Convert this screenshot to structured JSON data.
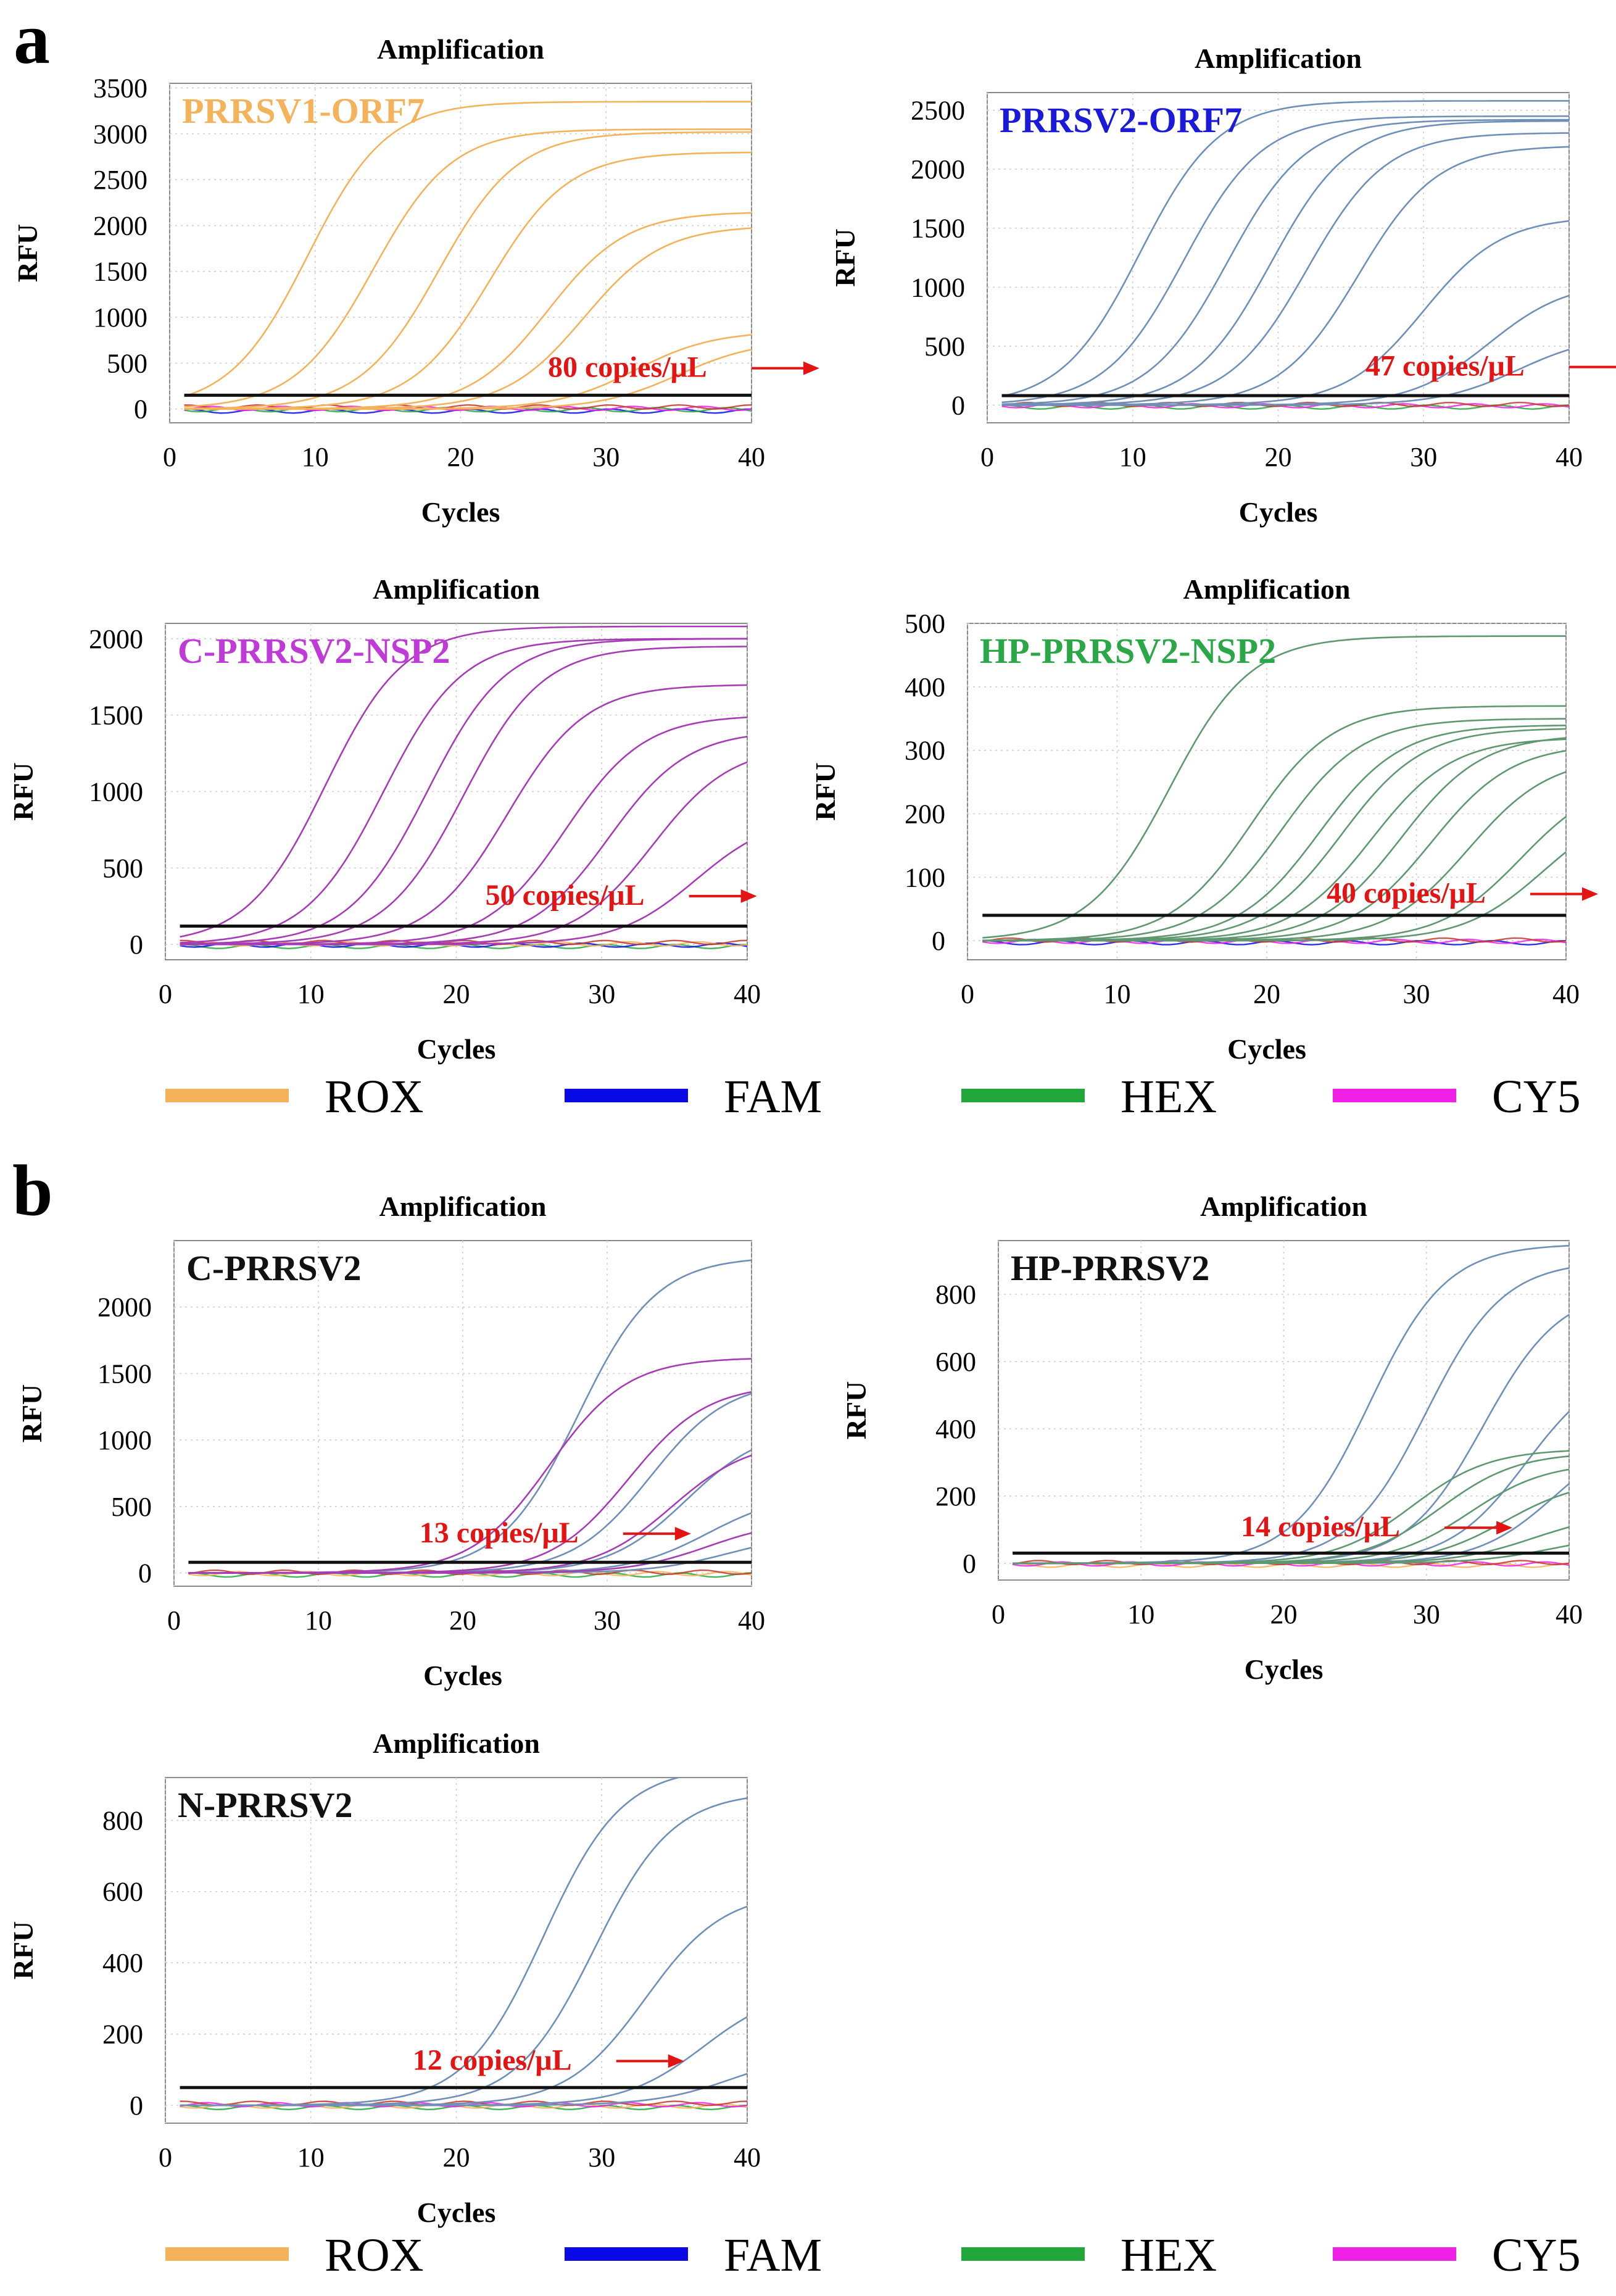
{
  "figure_labels": {
    "a": "a",
    "b": "b"
  },
  "threshold_color": "#111111",
  "legend": {
    "items": [
      {
        "name": "ROX",
        "color": "#F4B25B"
      },
      {
        "name": "FAM",
        "color": "#0A0AE6"
      },
      {
        "name": "HEX",
        "color": "#22A83A"
      },
      {
        "name": "CY5",
        "color": "#F020E6"
      }
    ]
  },
  "chart_data": [
    {
      "id": "a1",
      "type": "line",
      "title": "Amplification",
      "xlabel": "Cycles",
      "ylabel": "RFU",
      "xlim": [
        0,
        40
      ],
      "ylim": [
        -150,
        3550
      ],
      "xticks": [
        0,
        10,
        20,
        30,
        40
      ],
      "yticks": [
        0,
        500,
        1000,
        1500,
        2000,
        2500,
        3000,
        3500
      ],
      "label": "PRRSV1-ORF7",
      "label_color": "#F4B25B",
      "threshold": 150,
      "annotation": "80 copies/μL",
      "annotation_at": [
        26,
        350
      ],
      "curves": {
        "color": "#F4B25B",
        "params": [
          [
            9.5,
            3350
          ],
          [
            14,
            3050
          ],
          [
            18.5,
            3020
          ],
          [
            22,
            2800
          ],
          [
            26,
            2150
          ],
          [
            28.5,
            2000
          ],
          [
            32,
            850
          ],
          [
            35,
            750
          ]
        ]
      },
      "flat_colors": [
        "#0A0AE6",
        "#22A83A",
        "#F020E6",
        "#C0392B"
      ]
    },
    {
      "id": "a2",
      "type": "line",
      "title": "Amplification",
      "xlabel": "Cycles",
      "ylabel": "RFU",
      "xlim": [
        0,
        40
      ],
      "ylim": [
        -150,
        2650
      ],
      "xticks": [
        0,
        10,
        20,
        30,
        40
      ],
      "yticks": [
        0,
        500,
        1000,
        1500,
        2000,
        2500
      ],
      "label": "PRRSV2-ORF7",
      "label_color": "#1A1AD8",
      "threshold": 80,
      "annotation": "47 copies/μL",
      "annotation_at": [
        26,
        250
      ],
      "curves": {
        "color": "#6F8FB8",
        "params": [
          [
            10.5,
            2580
          ],
          [
            13.5,
            2450
          ],
          [
            16.5,
            2420
          ],
          [
            19.5,
            2410
          ],
          [
            22,
            2310
          ],
          [
            25.5,
            2200
          ],
          [
            30,
            1600
          ],
          [
            34.5,
            1050
          ],
          [
            36.5,
            600
          ]
        ]
      },
      "flat_colors": [
        "#22A83A",
        "#F020E6",
        "#C0392B"
      ]
    },
    {
      "id": "a3",
      "type": "line",
      "title": "Amplification",
      "xlabel": "Cycles",
      "ylabel": "RFU",
      "xlim": [
        0,
        40
      ],
      "ylim": [
        -100,
        2100
      ],
      "xticks": [
        0,
        10,
        20,
        30,
        40
      ],
      "yticks": [
        0,
        500,
        1000,
        1500,
        2000
      ],
      "label": "C-PRRSV2-NSP2",
      "label_color": "#C03AD8",
      "threshold": 120,
      "annotation": "50 copies/μL",
      "annotation_at": [
        22,
        260
      ],
      "curves": {
        "color": "#A63CB5",
        "params": [
          [
            11,
            2080
          ],
          [
            15,
            2000
          ],
          [
            18,
            2000
          ],
          [
            20.5,
            1950
          ],
          [
            23.5,
            1700
          ],
          [
            27.5,
            1500
          ],
          [
            30.5,
            1400
          ],
          [
            33.5,
            1300
          ],
          [
            36.5,
            850
          ]
        ]
      },
      "flat_colors": [
        "#22A83A",
        "#0A0AE6",
        "#F4B25B",
        "#C0392B"
      ]
    },
    {
      "id": "a4",
      "type": "line",
      "title": "Amplification",
      "xlabel": "Cycles",
      "ylabel": "RFU",
      "xlim": [
        0,
        40
      ],
      "ylim": [
        -30,
        500
      ],
      "xticks": [
        0,
        10,
        20,
        30,
        40
      ],
      "yticks": [
        0,
        100,
        200,
        300,
        400,
        500
      ],
      "label": "HP-PRRSV2-NSP2",
      "label_color": "#2AA847",
      "threshold": 40,
      "annotation": "40 copies/μL",
      "annotation_at": [
        24,
        60
      ],
      "curves": {
        "color": "#5E9870",
        "params": [
          [
            13.5,
            480
          ],
          [
            19,
            370
          ],
          [
            21,
            350
          ],
          [
            23.5,
            340
          ],
          [
            25,
            335
          ],
          [
            27,
            320
          ],
          [
            29,
            325
          ],
          [
            31,
            310
          ],
          [
            33.5,
            290
          ],
          [
            37,
            260
          ],
          [
            38.5,
            220
          ]
        ]
      },
      "flat_colors": [
        "#0A0AE6",
        "#F020E6",
        "#C0392B"
      ]
    },
    {
      "id": "b1",
      "type": "line",
      "title": "Amplification",
      "xlabel": "Cycles",
      "ylabel": "RFU",
      "xlim": [
        0,
        40
      ],
      "ylim": [
        -100,
        2500
      ],
      "xticks": [
        0,
        10,
        20,
        30,
        40
      ],
      "yticks": [
        0,
        500,
        1000,
        1500,
        2000
      ],
      "label": "C-PRRSV2",
      "label_color": "#111111",
      "threshold": 80,
      "annotation": "13 copies/μL",
      "annotation_at": [
        17,
        230
      ],
      "curves": {
        "color": "#6F8FB8",
        "params": [
          [
            28,
            2380
          ],
          [
            33,
            1450
          ],
          [
            35.5,
            1100
          ],
          [
            37,
            600
          ],
          [
            38.5,
            300
          ]
        ]
      },
      "curves2": {
        "color": "#A63CB5",
        "params": [
          [
            26,
            1620
          ],
          [
            31.5,
            1420
          ],
          [
            34.5,
            1000
          ],
          [
            37,
            400
          ]
        ]
      },
      "flat_colors": [
        "#22A83A",
        "#F4B25B",
        "#C0392B"
      ]
    },
    {
      "id": "b2",
      "type": "line",
      "title": "Amplification",
      "xlabel": "Cycles",
      "ylabel": "RFU",
      "xlim": [
        0,
        40
      ],
      "ylim": [
        -50,
        960
      ],
      "xticks": [
        0,
        10,
        20,
        30,
        40
      ],
      "yticks": [
        0,
        200,
        400,
        600,
        800
      ],
      "label": "HP-PRRSV2",
      "label_color": "#111111",
      "threshold": 30,
      "annotation": "14 copies/μL",
      "annotation_at": [
        17,
        80
      ],
      "curves": {
        "color": "#6F8FB8",
        "params": [
          [
            26,
            950
          ],
          [
            30,
            900
          ],
          [
            34,
            820
          ],
          [
            37,
            600
          ],
          [
            39,
            400
          ]
        ]
      },
      "curves2": {
        "color": "#5E9870",
        "params": [
          [
            29,
            340
          ],
          [
            31,
            330
          ],
          [
            33,
            300
          ],
          [
            35.5,
            250
          ],
          [
            37.5,
            150
          ],
          [
            39,
            90
          ]
        ]
      },
      "flat_colors": [
        "#F4B25B",
        "#F020E6",
        "#C0392B"
      ]
    },
    {
      "id": "b3",
      "type": "line",
      "title": "Amplification",
      "xlabel": "Cycles",
      "ylabel": "RFU",
      "xlim": [
        0,
        40
      ],
      "ylim": [
        -50,
        920
      ],
      "xticks": [
        0,
        10,
        20,
        30,
        40
      ],
      "yticks": [
        0,
        200,
        400,
        600,
        800
      ],
      "label": "N-PRRSV2",
      "label_color": "#111111",
      "threshold": 50,
      "annotation": "12 copies/μL",
      "annotation_at": [
        17,
        100
      ],
      "curves": {
        "color": "#6F8FB8",
        "params": [
          [
            26,
            950
          ],
          [
            29.5,
            880
          ],
          [
            33,
            600
          ],
          [
            37,
            330
          ],
          [
            39,
            150
          ]
        ]
      },
      "flat_colors": [
        "#22A83A",
        "#F4B25B",
        "#F020E6",
        "#C0392B"
      ]
    }
  ]
}
